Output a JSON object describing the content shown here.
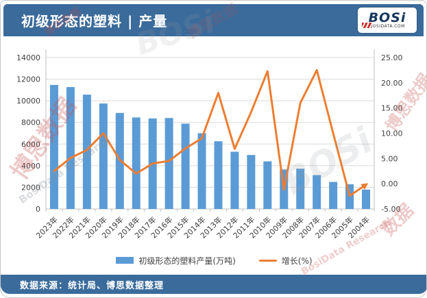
{
  "header": {
    "title": "初级形态的塑料 | 产量",
    "logo": {
      "text": "BOSi",
      "sub": "BOSIDATA.COM"
    }
  },
  "legend": {
    "bars": "初级形态的塑料产量(万吨)",
    "line": "增长(%)"
  },
  "footer": {
    "source": "数据来源：统计局、博思数据整理"
  },
  "watermarks": [
    "博思数据",
    "BosiData Research",
    "BOSi",
    "博思数据",
    "BOSi",
    "博思数据",
    "数据",
    "BosiData Research",
    "博思数据"
  ],
  "colors": {
    "banner": "#3A6B9B",
    "bar": "#5B9BD5",
    "line": "#ED7D31",
    "grid": "#D9D9D9",
    "axis": "#BFBFBF",
    "text": "#3f3f3f"
  },
  "chart_data": {
    "type": "bar",
    "title": "初级形态的塑料 | 产量",
    "categories": [
      "2023年",
      "2022年",
      "2021年",
      "2020年",
      "2019年",
      "2018年",
      "2017年",
      "2016年",
      "2015年",
      "2014年",
      "2013年",
      "2012年",
      "2011年",
      "2010年",
      "2009年",
      "2008年",
      "2007年",
      "2006年",
      "2005年",
      "2004年"
    ],
    "series": [
      {
        "name": "初级形态的塑料产量(万吨)",
        "type": "bar",
        "axis": "left",
        "values": [
          11470,
          11270,
          10570,
          9750,
          8880,
          8460,
          8370,
          8410,
          7890,
          7000,
          6260,
          5290,
          4990,
          4400,
          3650,
          3720,
          3130,
          2500,
          2280,
          1790
        ]
      },
      {
        "name": "增长(%)",
        "type": "line",
        "axis": "right",
        "values": [
          2.5,
          5.1,
          6.7,
          10.0,
          4.7,
          2.0,
          4.0,
          4.5,
          7.0,
          9.0,
          18.0,
          6.9,
          14.2,
          22.3,
          -1.2,
          16.0,
          22.5,
          10.0,
          -2.4,
          -0.2
        ]
      }
    ],
    "left_axis": {
      "min": 0,
      "max": 14000,
      "step": 2000
    },
    "right_axis": {
      "min": -5,
      "max": 25,
      "step": 5,
      "decimals": 2
    },
    "grid": true,
    "legend_position": "bottom",
    "x_label_rotation": -45
  }
}
